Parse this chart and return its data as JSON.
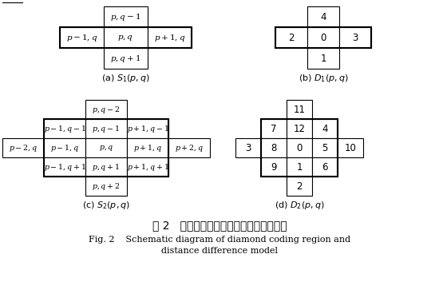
{
  "bg_color": "#ffffff",
  "title_zh": "图 2   菱形编码区域以及距离差模型示意图",
  "title_en_line1": "Fig. 2    Schematic diagram of diamond coding region and",
  "title_en_line2": "distance difference model",
  "diag_a_label": "(a) $S_1(p,q)$",
  "diag_b_label": "(b) $D_1(p,q)$",
  "diag_c_label": "(c) $S_2(p,q)$",
  "diag_d_label": "(d) $D_2(p,q)$",
  "a_cells": [
    {
      "text": "$p,q-1$",
      "col": 1,
      "row": 0
    },
    {
      "text": "$p-1,q$",
      "col": 0,
      "row": 1
    },
    {
      "text": "$p,q$",
      "col": 1,
      "row": 1
    },
    {
      "text": "$p+1,q$",
      "col": 2,
      "row": 1
    },
    {
      "text": "$p,q+1$",
      "col": 1,
      "row": 2
    }
  ],
  "b_cells": [
    {
      "text": "4",
      "col": 1,
      "row": 0
    },
    {
      "text": "2",
      "col": 0,
      "row": 1
    },
    {
      "text": "0",
      "col": 1,
      "row": 1
    },
    {
      "text": "3",
      "col": 2,
      "row": 1
    },
    {
      "text": "1",
      "col": 1,
      "row": 2
    }
  ],
  "c_cells": [
    {
      "text": "$p,q-2$",
      "col": 2,
      "row": 0
    },
    {
      "text": "$p-1,q-1$",
      "col": 1,
      "row": 1
    },
    {
      "text": "$p,q-1$",
      "col": 2,
      "row": 1
    },
    {
      "text": "$p+1,q-1$",
      "col": 3,
      "row": 1
    },
    {
      "text": "$p-2,q$",
      "col": 0,
      "row": 2
    },
    {
      "text": "$p-1,q$",
      "col": 1,
      "row": 2
    },
    {
      "text": "$p,q$",
      "col": 2,
      "row": 2
    },
    {
      "text": "$p+1,q$",
      "col": 3,
      "row": 2
    },
    {
      "text": "$p+2,q$",
      "col": 4,
      "row": 2
    },
    {
      "text": "$p-1,q+1$",
      "col": 1,
      "row": 3
    },
    {
      "text": "$p,q+1$",
      "col": 2,
      "row": 3
    },
    {
      "text": "$p+1,q+1$",
      "col": 3,
      "row": 3
    },
    {
      "text": "$p,q+2$",
      "col": 2,
      "row": 4
    }
  ],
  "d_cells": [
    {
      "text": "11",
      "col": 2,
      "row": 0
    },
    {
      "text": "7",
      "col": 1,
      "row": 1
    },
    {
      "text": "12",
      "col": 2,
      "row": 1
    },
    {
      "text": "4",
      "col": 3,
      "row": 1
    },
    {
      "text": "3",
      "col": 0,
      "row": 2
    },
    {
      "text": "8",
      "col": 1,
      "row": 2
    },
    {
      "text": "0",
      "col": 2,
      "row": 2
    },
    {
      "text": "5",
      "col": 3,
      "row": 2
    },
    {
      "text": "10",
      "col": 4,
      "row": 2
    },
    {
      "text": "9",
      "col": 1,
      "row": 3
    },
    {
      "text": "1",
      "col": 2,
      "row": 3
    },
    {
      "text": "6",
      "col": 3,
      "row": 3
    },
    {
      "text": "2",
      "col": 2,
      "row": 4
    }
  ]
}
